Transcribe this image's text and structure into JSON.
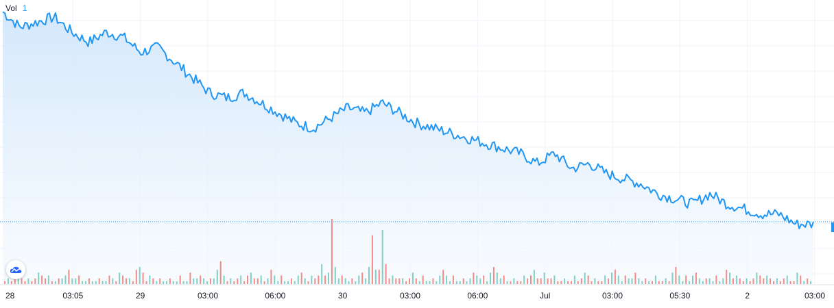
{
  "legend": {
    "label": "Vol",
    "value": "1"
  },
  "logo": {
    "icon": "tradingview-cloud-icon"
  },
  "colors": {
    "line": "#2196f3",
    "area_top": "#cfe5fb",
    "area_bottom": "#f4f9fe",
    "vol_up": "#7fcfc4",
    "vol_down": "#f08c88",
    "grid": "#f0f3fa",
    "last_price": "#2196f3"
  },
  "chart_data": {
    "type": "area",
    "x_ticks": [
      "28",
      "03:05",
      "29",
      "03:00",
      "06:00",
      "30",
      "03:00",
      "06:00",
      "Jul",
      "03:00",
      "05:30",
      "2",
      "03:00"
    ],
    "series": [
      {
        "values": [
          100,
          97,
          98,
          99,
          96,
          94,
          96,
          95,
          92,
          93,
          90,
          87,
          84,
          83,
          84,
          82,
          80,
          78,
          77,
          79,
          81,
          80,
          82,
          80,
          78,
          77,
          76,
          75,
          74,
          73,
          72,
          70,
          72,
          69,
          70,
          68,
          67,
          66,
          64,
          63,
          62,
          64,
          62,
          61,
          60,
          60,
          58,
          58
        ]
      }
    ],
    "volume": [
      2,
      3,
      2,
      4,
      3,
      2,
      5,
      3,
      2,
      2,
      3,
      4,
      2,
      6,
      3,
      2,
      2,
      3,
      4,
      3,
      2,
      8,
      2,
      3,
      4,
      3,
      5,
      3,
      2,
      4,
      3,
      7,
      12,
      3,
      2,
      4,
      9,
      10,
      3,
      2,
      4,
      3,
      2,
      5,
      3,
      2,
      4,
      3,
      6,
      3,
      2,
      3,
      5,
      4,
      3,
      2,
      3,
      4,
      2,
      3,
      5,
      3,
      4,
      2,
      3,
      2,
      6,
      3,
      4,
      2,
      3,
      5,
      3,
      2,
      4,
      3,
      2,
      3,
      4,
      2
    ],
    "volume_up": [
      1,
      0,
      1,
      0,
      1,
      1,
      0,
      1,
      0,
      1,
      0,
      0,
      1,
      0,
      1,
      1,
      0,
      1,
      0,
      1,
      0,
      1,
      1,
      0,
      1,
      0,
      0,
      1,
      0,
      1,
      1,
      0,
      0,
      1,
      0,
      1,
      0,
      0,
      1,
      0,
      1,
      1,
      0,
      1,
      0,
      1,
      0,
      1,
      0,
      1,
      1,
      0,
      1,
      0,
      1,
      0,
      1,
      0,
      1,
      0,
      0,
      1,
      0,
      1,
      1,
      0,
      0,
      1,
      0,
      1,
      0,
      1,
      1,
      0,
      1,
      0,
      1,
      0,
      1,
      1
    ],
    "last_value_line": true
  }
}
